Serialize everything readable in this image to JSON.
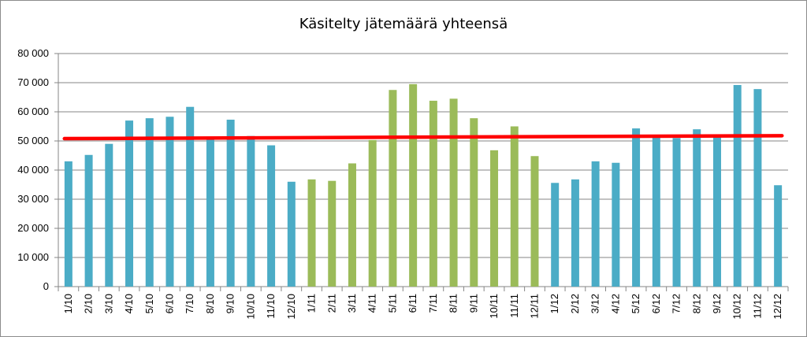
{
  "chart_data": {
    "type": "bar",
    "title": "Käsitelty jätemäärä yhteensä",
    "xlabel": "",
    "ylabel": "",
    "ylim": [
      0,
      80000
    ],
    "y_ticks": [
      "0",
      "10 000",
      "20 000",
      "30 000",
      "40 000",
      "50 000",
      "60 000",
      "70 000",
      "80 000"
    ],
    "y_tick_values": [
      0,
      10000,
      20000,
      30000,
      40000,
      50000,
      60000,
      70000,
      80000
    ],
    "grid": true,
    "legend": "none",
    "categories": [
      "1/10",
      "2/10",
      "3/10",
      "4/10",
      "5/10",
      "6/10",
      "7/10",
      "8/10",
      "9/10",
      "10/10",
      "11/10",
      "12/10",
      "1/11",
      "2/11",
      "3/11",
      "4/11",
      "5/11",
      "6/11",
      "7/11",
      "8/11",
      "9/11",
      "10/11",
      "11/11",
      "12/11",
      "1/12",
      "2/12",
      "3/12",
      "4/12",
      "5/12",
      "6/12",
      "7/12",
      "8/12",
      "9/12",
      "10/12",
      "11/12",
      "12/12"
    ],
    "values": [
      43000,
      45200,
      49000,
      57000,
      57800,
      58300,
      61700,
      50700,
      57300,
      51700,
      48500,
      36000,
      36800,
      36300,
      42300,
      50300,
      67500,
      69500,
      63800,
      64500,
      57800,
      46800,
      55000,
      44800,
      35600,
      36800,
      43000,
      42500,
      54300,
      51300,
      51000,
      54000,
      51300,
      69200,
      67800,
      34800
    ],
    "colors": [
      "#4bacc6",
      "#4bacc6",
      "#4bacc6",
      "#4bacc6",
      "#4bacc6",
      "#4bacc6",
      "#4bacc6",
      "#4bacc6",
      "#4bacc6",
      "#4bacc6",
      "#4bacc6",
      "#4bacc6",
      "#9bbb59",
      "#9bbb59",
      "#9bbb59",
      "#9bbb59",
      "#9bbb59",
      "#9bbb59",
      "#9bbb59",
      "#9bbb59",
      "#9bbb59",
      "#9bbb59",
      "#9bbb59",
      "#9bbb59",
      "#4bacc6",
      "#4bacc6",
      "#4bacc6",
      "#4bacc6",
      "#4bacc6",
      "#4bacc6",
      "#4bacc6",
      "#4bacc6",
      "#4bacc6",
      "#4bacc6",
      "#4bacc6",
      "#4bacc6"
    ],
    "trendline": {
      "start": 50800,
      "end": 51800,
      "color": "#ff0000"
    },
    "axis_color": "#868686",
    "grid_color": "#868686"
  }
}
